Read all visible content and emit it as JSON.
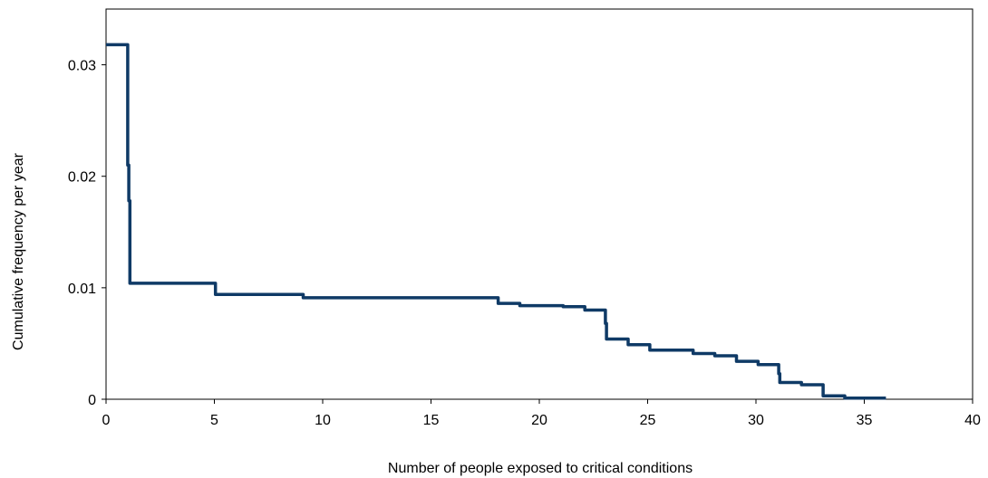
{
  "chart_data": {
    "type": "line",
    "title": "",
    "xlabel": "Number of people exposed to critical conditions",
    "ylabel": "Cumulative frequency per year",
    "xlim": [
      0,
      40
    ],
    "ylim": [
      0,
      0.035
    ],
    "x_ticks": [
      0,
      5,
      10,
      15,
      20,
      25,
      30,
      35,
      40
    ],
    "x_tick_labels": [
      "0",
      "5",
      "10",
      "15",
      "20",
      "25",
      "30",
      "35",
      "40"
    ],
    "y_ticks": [
      0,
      0.01,
      0.02,
      0.03
    ],
    "y_tick_labels": [
      "0",
      "0.01",
      "0.02",
      "0.03"
    ],
    "grid": false,
    "legend": "none",
    "line_color": "#0f3a66",
    "series": [
      {
        "step": "post",
        "x": [
          0,
          1,
          1,
          1.05,
          1.05,
          1.1,
          5,
          5.05,
          9,
          9.1,
          18,
          18.1,
          19,
          19.1,
          20,
          21,
          21.1,
          22,
          22.1,
          23,
          23.05,
          23.1,
          24,
          24.1,
          25,
          25.1,
          27,
          27.1,
          28,
          28.1,
          29,
          29.1,
          30,
          30.1,
          31,
          31.05,
          31.1,
          32,
          32.1,
          33,
          33.1,
          34,
          34.1,
          36
        ],
        "y": [
          0.0318,
          0.0318,
          0.021,
          0.021,
          0.0178,
          0.0104,
          0.0104,
          0.0094,
          0.0094,
          0.0091,
          0.0091,
          0.0086,
          0.0086,
          0.0084,
          0.0084,
          0.0084,
          0.0083,
          0.0083,
          0.008,
          0.008,
          0.0068,
          0.0054,
          0.0054,
          0.0049,
          0.0049,
          0.0044,
          0.0044,
          0.0041,
          0.0041,
          0.0039,
          0.0039,
          0.0034,
          0.0034,
          0.0031,
          0.0031,
          0.0023,
          0.0015,
          0.0015,
          0.0013,
          0.0013,
          0.0003,
          0.0003,
          0.0001,
          0.0001
        ]
      }
    ]
  }
}
